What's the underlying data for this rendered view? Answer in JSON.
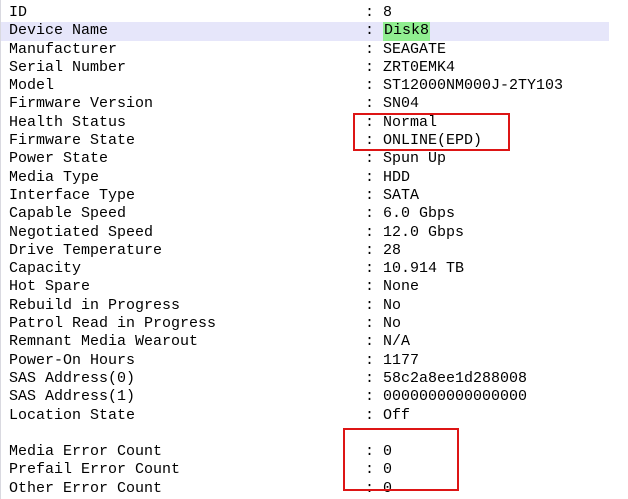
{
  "panel": {
    "title": "physical-disk-information",
    "colors": {
      "row_highlight": "#e6e6fa",
      "value_highlight": "#90ee90",
      "annotation_red": "#dd1515",
      "text": "#000000",
      "background": "#ffffff"
    },
    "rows": [
      {
        "label": "ID",
        "value": "8"
      },
      {
        "label": "Device Name",
        "value": "Disk8",
        "row_highlighted": true,
        "value_highlighted": true
      },
      {
        "label": "Manufacturer",
        "value": "SEAGATE"
      },
      {
        "label": "Serial Number",
        "value": "ZRT0EMK4"
      },
      {
        "label": "Model",
        "value": "ST12000NM000J-2TY103"
      },
      {
        "label": "Firmware Version",
        "value": "SN04"
      },
      {
        "label": "Health Status",
        "value": "Normal"
      },
      {
        "label": "Firmware State",
        "value": "ONLINE(EPD)"
      },
      {
        "label": "Power State",
        "value": "Spun Up"
      },
      {
        "label": "Media Type",
        "value": "HDD"
      },
      {
        "label": "Interface Type",
        "value": "SATA"
      },
      {
        "label": "Capable Speed",
        "value": "6.0 Gbps"
      },
      {
        "label": "Negotiated Speed",
        "value": "12.0 Gbps"
      },
      {
        "label": "Drive Temperature",
        "value": "28"
      },
      {
        "label": "Capacity",
        "value": "10.914 TB"
      },
      {
        "label": "Hot Spare",
        "value": "None"
      },
      {
        "label": "Rebuild in Progress",
        "value": "No"
      },
      {
        "label": "Patrol Read in Progress",
        "value": "No"
      },
      {
        "label": "Remnant Media Wearout",
        "value": "N/A"
      },
      {
        "label": "Power-On Hours",
        "value": "1177"
      },
      {
        "label": "SAS Address(0)",
        "value": "58c2a8ee1d288008"
      },
      {
        "label": "SAS Address(1)",
        "value": "0000000000000000"
      },
      {
        "label": "Location State",
        "value": "Off"
      },
      {
        "blank": true
      },
      {
        "label": "Media Error Count",
        "value": "0"
      },
      {
        "label": "Prefail Error Count",
        "value": "0"
      },
      {
        "label": "Other Error Count",
        "value": "0"
      }
    ],
    "annotations": [
      {
        "name": "health-and-firmware-state-box"
      },
      {
        "name": "error-counts-box"
      }
    ]
  }
}
